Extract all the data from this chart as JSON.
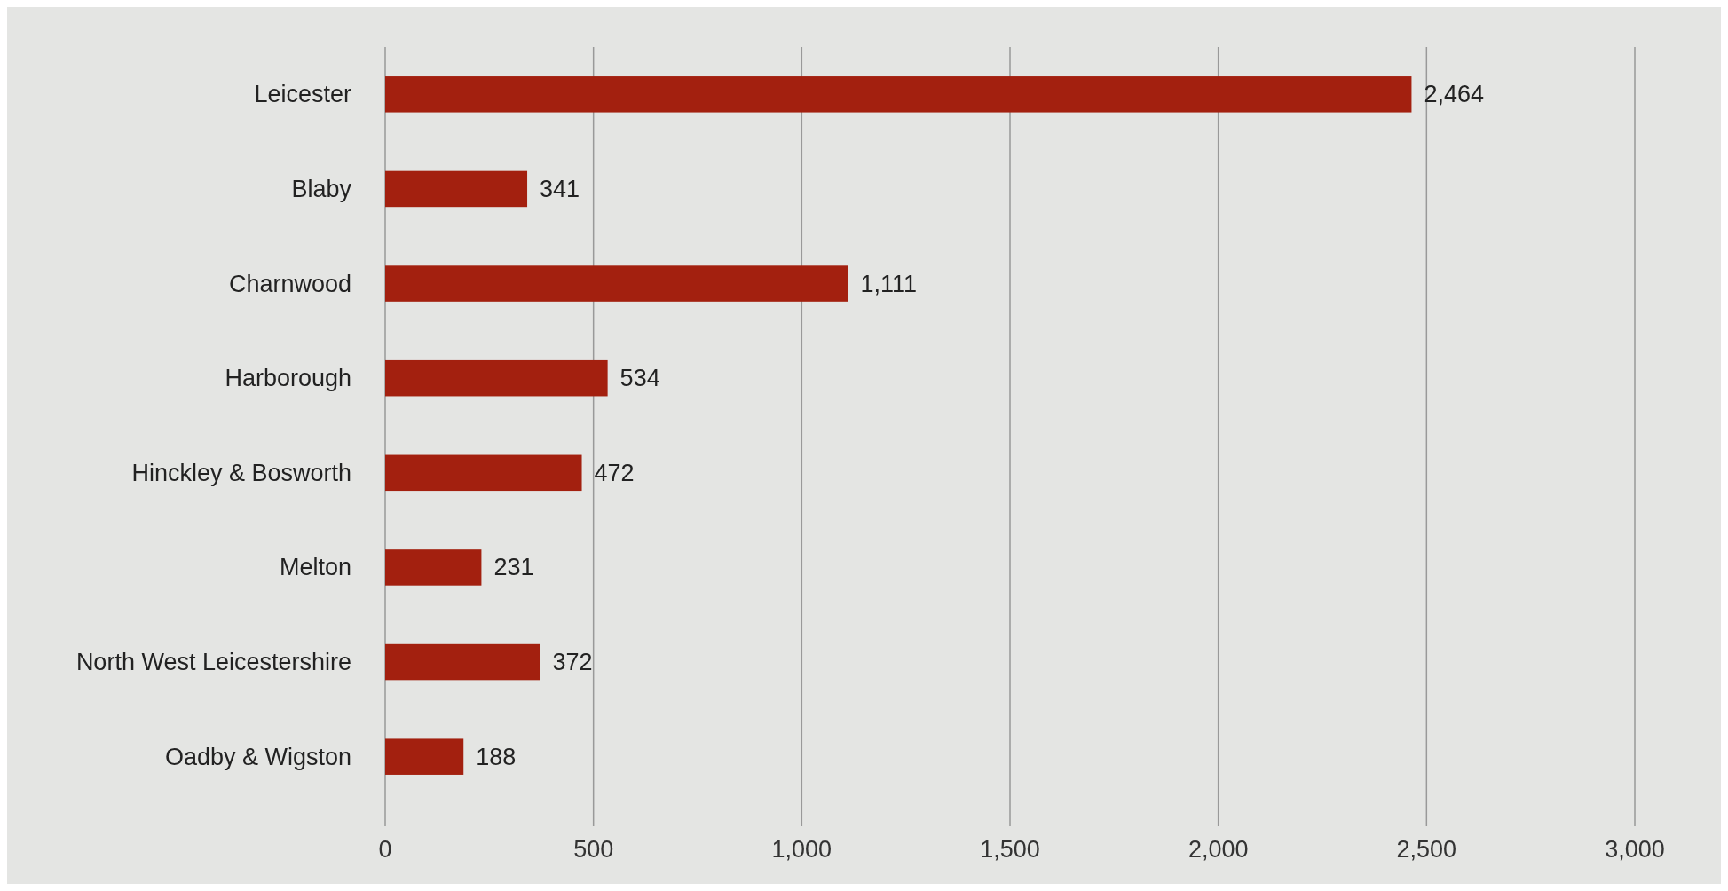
{
  "chart_data": {
    "type": "bar",
    "orientation": "horizontal",
    "categories": [
      "Leicester",
      "Blaby",
      "Charnwood",
      "Harborough",
      "Hinckley & Bosworth",
      "Melton",
      "North West Leicestershire",
      "Oadby & Wigston"
    ],
    "values": [
      2464,
      341,
      1111,
      534,
      472,
      231,
      372,
      188
    ],
    "value_labels": [
      "2,464",
      "341",
      "1,111",
      "534",
      "472",
      "231",
      "372",
      "188"
    ],
    "color": "#a3200f",
    "xlim": [
      0,
      3000
    ],
    "xticks": [
      0,
      500,
      {
        "value": 1000,
        "label": "1,000"
      },
      {
        "value": 1500,
        "label": "1,500"
      },
      {
        "value": 2000,
        "label": "2,000"
      },
      {
        "value": 2500,
        "label": "2,500"
      },
      {
        "value": 3000,
        "label": "3,000"
      }
    ],
    "grid": "x"
  }
}
